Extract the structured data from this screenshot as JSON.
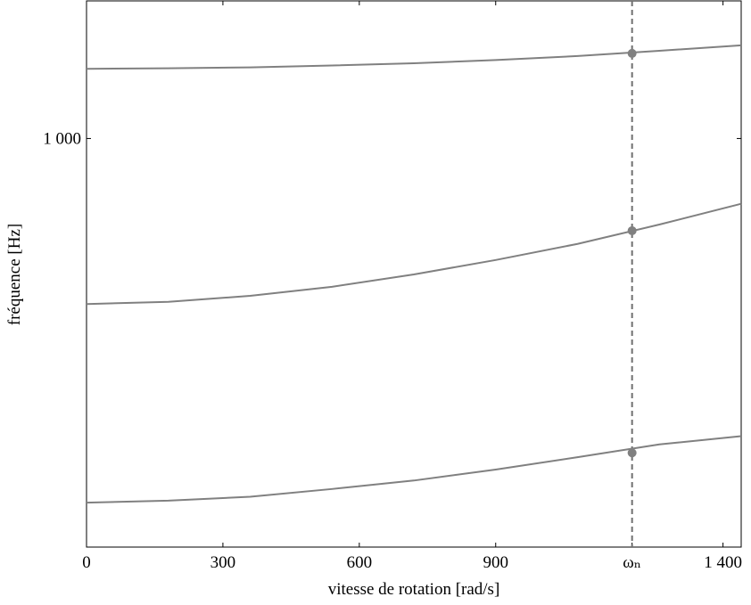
{
  "chart_data": {
    "type": "line",
    "xlabel": "vitesse de rotation [rad/s]",
    "ylabel": "fréquence [Hz]",
    "x": [
      0,
      180,
      360,
      540,
      720,
      900,
      1080,
      1260,
      1440
    ],
    "series": [
      {
        "color": "#808080",
        "values": [
          1228,
          1230,
          1233,
          1240,
          1248,
          1260,
          1275,
          1295,
          1316
        ]
      },
      {
        "color": "#808080",
        "values": [
          614,
          618,
          629,
          646,
          670,
          699,
          733,
          776,
          825
        ]
      },
      {
        "color": "#808080",
        "values": [
          342,
          344,
          348,
          356,
          365,
          377,
          391,
          406,
          416
        ]
      }
    ],
    "points": {
      "color": "#808080",
      "x": [
        1200,
        1200,
        1200
      ],
      "values": [
        1285,
        762,
        396
      ]
    },
    "vline": {
      "x": 1200,
      "color": "#707070",
      "dashed": true
    },
    "xlim": [
      0,
      1440
    ],
    "xticks": [
      0,
      300,
      600,
      900,
      {
        "value": 1200,
        "label": "ωₙ"
      },
      {
        "value": 1400,
        "label": "1 400"
      }
    ],
    "ylim": [
      300,
      1500
    ],
    "yticks": [
      {
        "value": 1000,
        "label": "1 000"
      }
    ],
    "ylog": true,
    "grid": false
  }
}
